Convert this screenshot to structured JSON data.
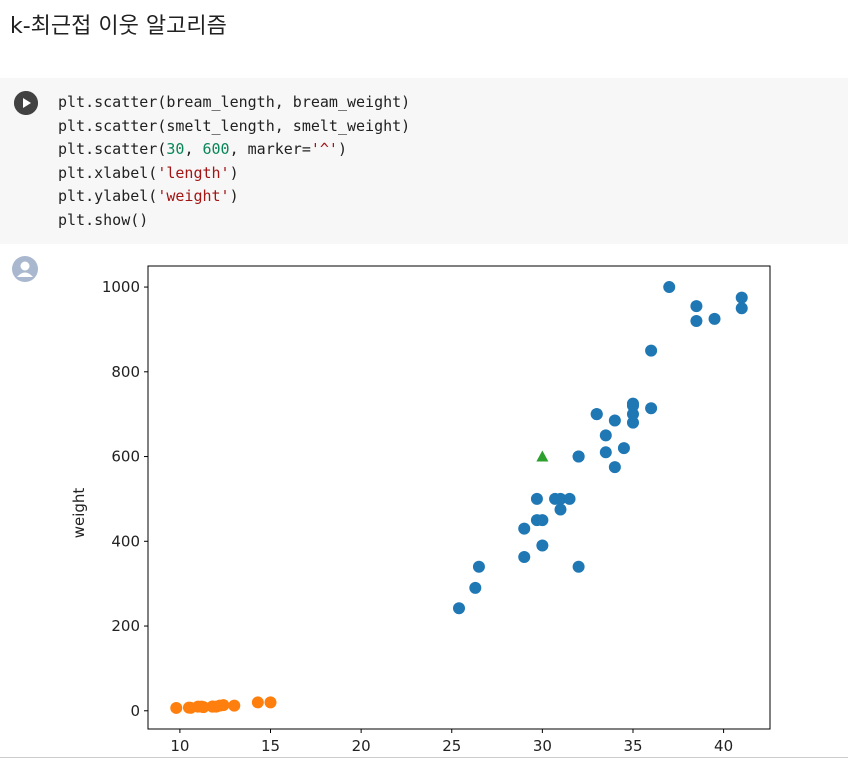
{
  "header": {
    "title": "k-최근접 이웃 알고리즘"
  },
  "code": {
    "lines": [
      [
        {
          "text": "plt.scatter(bream_length, bream_weight)",
          "color": "#212121"
        }
      ],
      [
        {
          "text": "plt.scatter(smelt_length, smelt_weight)",
          "color": "#212121"
        }
      ],
      [
        {
          "text": "plt.scatter(",
          "color": "#212121"
        },
        {
          "text": "30",
          "color": "#098658"
        },
        {
          "text": ", ",
          "color": "#212121"
        },
        {
          "text": "600",
          "color": "#098658"
        },
        {
          "text": ", marker=",
          "color": "#212121"
        },
        {
          "text": "'^'",
          "color": "#a31515"
        },
        {
          "text": ")",
          "color": "#212121"
        }
      ],
      [
        {
          "text": "plt.xlabel(",
          "color": "#212121"
        },
        {
          "text": "'length'",
          "color": "#a31515"
        },
        {
          "text": ")",
          "color": "#212121"
        }
      ],
      [
        {
          "text": "plt.ylabel(",
          "color": "#212121"
        },
        {
          "text": "'weight'",
          "color": "#a31515"
        },
        {
          "text": ")",
          "color": "#212121"
        }
      ],
      [
        {
          "text": "plt.show()",
          "color": "#212121"
        }
      ]
    ]
  },
  "chart_data": {
    "type": "scatter",
    "y_label": "weight",
    "xlim": [
      8.24,
      42.56
    ],
    "ylim": [
      -43,
      1049.7
    ],
    "xticks": [
      10,
      15,
      20,
      25,
      30,
      35,
      40
    ],
    "yticks": [
      0,
      200,
      400,
      600,
      800,
      1000
    ],
    "series": [
      {
        "color": "#1f77b4",
        "marker": "o",
        "x": [
          25.4,
          26.3,
          26.5,
          29.0,
          29.0,
          29.7,
          29.7,
          30.0,
          30.0,
          30.7,
          31.0,
          31.0,
          31.5,
          32.0,
          32.0,
          32.0,
          33.0,
          33.0,
          33.5,
          33.5,
          34.0,
          34.0,
          34.5,
          35.0,
          35.0,
          35.0,
          35.0,
          36.0,
          36.0,
          37.0,
          38.5,
          38.5,
          39.5,
          41.0,
          41.0
        ],
        "values": [
          242,
          290,
          340,
          363,
          430,
          450,
          500,
          390,
          450,
          500,
          475,
          500,
          500,
          340,
          600,
          600,
          700,
          700,
          610,
          650,
          575,
          685,
          620,
          680,
          700,
          725,
          720,
          714,
          850,
          1000,
          920,
          955,
          925,
          975,
          950
        ]
      },
      {
        "color": "#ff7f0e",
        "marker": "o",
        "x": [
          9.8,
          10.5,
          10.6,
          11.0,
          11.2,
          11.3,
          11.8,
          11.8,
          12.0,
          12.2,
          12.4,
          13.0,
          14.3,
          15.0
        ],
        "values": [
          6.7,
          7.5,
          7.0,
          9.7,
          9.8,
          8.7,
          10.0,
          9.9,
          9.8,
          12.2,
          13.4,
          12.2,
          19.7,
          19.9
        ]
      },
      {
        "color": "#2ca02c",
        "marker": "^",
        "x": [
          30
        ],
        "values": [
          600
        ]
      }
    ]
  }
}
